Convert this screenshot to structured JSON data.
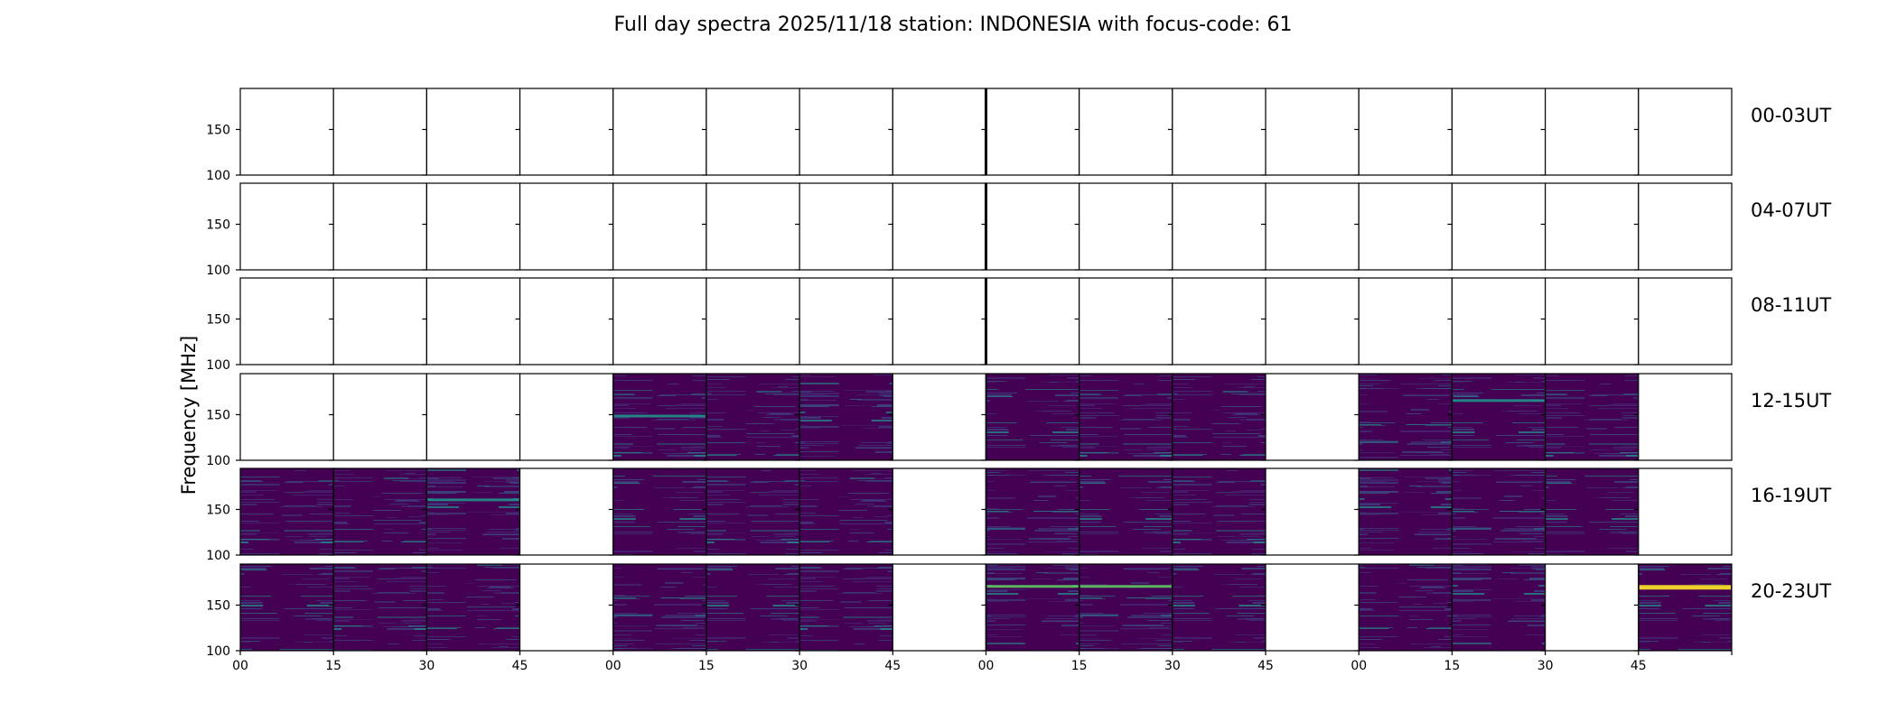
{
  "chart_data": {
    "type": "heatmap",
    "title": "Full day spectra 2025/11/18 station: INDONESIA with focus-code: 61",
    "ylabel": "Frequency [MHz]",
    "xlabel": "",
    "ylim": [
      100,
      195
    ],
    "y_ticks": [
      "100",
      "150"
    ],
    "y_tick_values": [
      100,
      150
    ],
    "x_ticks": [
      "00",
      "15",
      "30",
      "45",
      "00",
      "15",
      "30",
      "45",
      "00",
      "15",
      "30",
      "45",
      "00",
      "15",
      "30",
      "45",
      ""
    ],
    "rows": [
      {
        "label": "00-03UT",
        "filled": [
          0,
          0,
          0,
          0,
          0,
          0,
          0,
          0,
          0,
          0,
          0,
          0,
          0,
          0,
          0,
          0
        ]
      },
      {
        "label": "04-07UT",
        "filled": [
          0,
          0,
          0,
          0,
          0,
          0,
          0,
          0,
          0,
          0,
          0,
          0,
          0,
          0,
          0,
          0
        ]
      },
      {
        "label": "08-11UT",
        "filled": [
          0,
          0,
          0,
          0,
          0,
          0,
          0,
          0,
          0,
          0,
          0,
          0,
          0,
          0,
          0,
          0
        ]
      },
      {
        "label": "12-15UT",
        "filled": [
          0,
          0,
          0,
          0,
          1,
          1,
          1,
          0,
          1,
          1,
          1,
          0,
          1,
          1,
          1,
          0
        ]
      },
      {
        "label": "16-19UT",
        "filled": [
          1,
          1,
          1,
          0,
          1,
          1,
          1,
          0,
          1,
          1,
          1,
          0,
          1,
          1,
          1,
          0
        ]
      },
      {
        "label": "20-23UT",
        "filled": [
          1,
          1,
          1,
          0,
          1,
          1,
          1,
          0,
          1,
          1,
          1,
          0,
          1,
          1,
          0,
          1
        ]
      }
    ],
    "bright_lines": [
      {
        "row": 5,
        "col": 8,
        "freq": 170,
        "strength": 0.6
      },
      {
        "row": 5,
        "col": 9,
        "freq": 170,
        "strength": 0.75
      },
      {
        "row": 5,
        "col": 15,
        "freq": 170,
        "strength": 1.0
      },
      {
        "row": 3,
        "col": 13,
        "freq": 165,
        "strength": 0.5
      },
      {
        "row": 3,
        "col": 4,
        "freq": 148,
        "strength": 0.45
      },
      {
        "row": 4,
        "col": 2,
        "freq": 160,
        "strength": 0.35
      }
    ],
    "colors": {
      "background": "#440154",
      "mid": "#3b528b",
      "line": "#21918c",
      "bright": "#fde725",
      "bright2": "#5ec962"
    }
  }
}
